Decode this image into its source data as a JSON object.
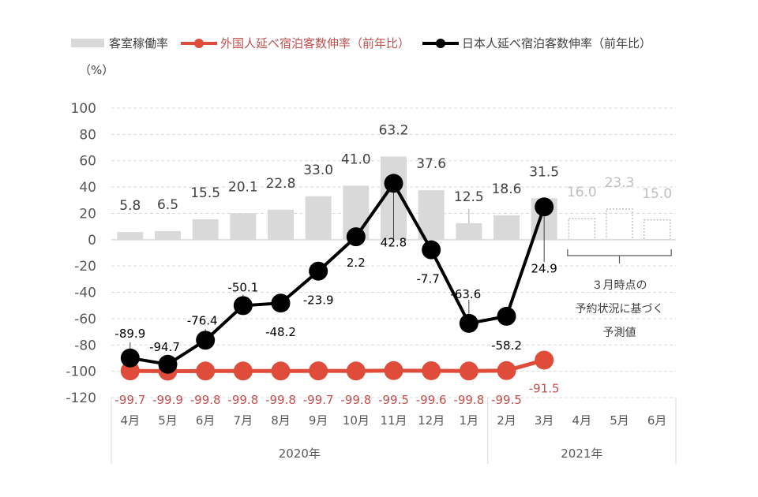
{
  "legend": {
    "items": [
      {
        "label": "客室稼働率",
        "kind": "bar",
        "color": "#d9d9d9"
      },
      {
        "label": "外国人延べ宿泊客数伸率（前年比）",
        "kind": "line",
        "color": "#e04c3a"
      },
      {
        "label": "日本人延べ宿泊客数伸率（前年比）",
        "kind": "line",
        "color": "#000000"
      }
    ]
  },
  "unit_label": "（%）",
  "forecast_note": [
    "３月時点の",
    "予約状況に基づく",
    "予測値"
  ],
  "chart_data": {
    "type": "bar+line",
    "title": "",
    "ylabel": "（%）",
    "ylim": [
      -120,
      100
    ],
    "yticks": [
      100,
      80,
      60,
      40,
      20,
      0,
      -20,
      -40,
      -60,
      -80,
      -100,
      -120
    ],
    "grid": true,
    "legend_position": "top",
    "categories": [
      "4月",
      "5月",
      "6月",
      "7月",
      "8月",
      "9月",
      "10月",
      "11月",
      "12月",
      "1月",
      "2月",
      "3月",
      "4月",
      "5月",
      "6月"
    ],
    "year_groups": [
      {
        "label": "2020年",
        "count": 10
      },
      {
        "label": "2021年",
        "count": 5
      }
    ],
    "series": [
      {
        "name": "客室稼働率",
        "type": "bar",
        "color": "#d9d9d9",
        "values": [
          5.8,
          6.5,
          15.5,
          20.1,
          22.8,
          33.0,
          41.0,
          63.2,
          37.6,
          12.5,
          18.6,
          31.5,
          16.0,
          23.3,
          15.0
        ],
        "labels": [
          "5.8",
          "6.5",
          "15.5",
          "20.1",
          "22.8",
          "33.0",
          "41.0",
          "63.2",
          "37.6",
          "12.5",
          "18.6",
          "31.5",
          "16.0",
          "23.3",
          "15.0"
        ],
        "forecast_from_index": 12,
        "forecast_color": "#bfbfbf"
      },
      {
        "name": "外国人延べ宿泊客数伸率（前年比）",
        "type": "line",
        "color": "#e04c3a",
        "label_color": "#c0504d",
        "values": [
          -99.7,
          -99.9,
          -99.8,
          -99.8,
          -99.8,
          -99.7,
          -99.8,
          -99.5,
          -99.6,
          -99.8,
          -99.5,
          -91.5,
          null,
          null,
          null
        ],
        "labels": [
          "-99.7",
          "-99.9",
          "-99.8",
          "-99.8",
          "-99.8",
          "-99.7",
          "-99.8",
          "-99.5",
          "-99.6",
          "-99.8",
          "-99.5",
          "-91.5"
        ]
      },
      {
        "name": "日本人延べ宿泊客数伸率（前年比）",
        "type": "line",
        "color": "#000000",
        "values": [
          -89.9,
          -94.7,
          -76.4,
          -50.1,
          -48.2,
          -23.9,
          2.2,
          42.8,
          -7.7,
          -63.6,
          -58.2,
          24.9,
          null,
          null,
          null
        ],
        "labels": [
          "-89.9",
          "-94.7",
          "-76.4",
          "-50.1",
          "-48.2",
          "-23.9",
          "2.2",
          "42.8",
          "-7.7",
          "-63.6",
          "-58.2",
          "24.9"
        ]
      }
    ]
  }
}
